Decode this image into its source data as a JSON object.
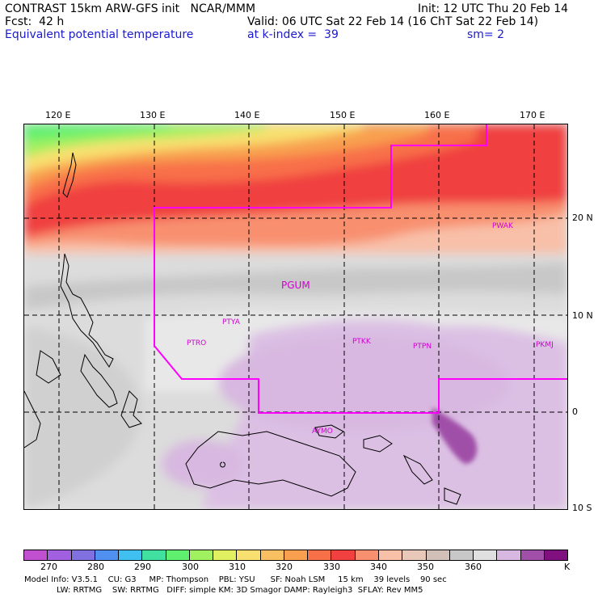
{
  "header": {
    "line1_left": "CONTRAST 15km ARW-GFS init   NCAR/MMM",
    "line1_right": "Init: 12 UTC Thu 20 Feb 14",
    "fcst": "Fcst:  42 h",
    "valid": "Valid: 06 UTC Sat 22 Feb 14 (16 ChT Sat 22 Feb 14)",
    "field": "Equivalent potential temperature",
    "level": "at k-index =  39",
    "smoothing": "sm= 2"
  },
  "map": {
    "lon_labels": [
      "120 E",
      "130 E",
      "140 E",
      "150 E",
      "160 E",
      "170 E"
    ],
    "lat_labels": [
      "20 N",
      "10 N",
      "0",
      "10 S"
    ],
    "stations": [
      {
        "id": "PGUM",
        "big": true
      },
      {
        "id": "PWAK"
      },
      {
        "id": "PTYA"
      },
      {
        "id": "PTRO"
      },
      {
        "id": "PTKK"
      },
      {
        "id": "PTPN"
      },
      {
        "id": "PKMJ"
      },
      {
        "id": "AYMO"
      }
    ]
  },
  "colorbar": {
    "colors": [
      "#c050d0",
      "#a060e0",
      "#8070e0",
      "#5090f0",
      "#40c0f0",
      "#40e0a0",
      "#60f070",
      "#a0f060",
      "#e0f060",
      "#f8e070",
      "#f8c060",
      "#f8a050",
      "#f87048",
      "#f04040",
      "#f89070",
      "#f8c0a8",
      "#e8c8b8",
      "#d0c0b8",
      "#c8c8c8",
      "#e0e0e0",
      "#d8b8e0",
      "#a050a8",
      "#801080"
    ],
    "labels": [
      "270",
      "280",
      "290",
      "300",
      "310",
      "320",
      "330",
      "340",
      "350",
      "360",
      "K"
    ]
  },
  "footer": {
    "line1": "Model Info: V3.5.1    CU: G3     MP: Thompson    PBL: YSU      SF: Noah LSM     15 km    39 levels    90 sec",
    "line2": "LW: RRTMG    SW: RRTMG   DIFF: simple KM: 3D Smagor DAMP: Rayleigh3  SFLAY: Rev MM5"
  }
}
